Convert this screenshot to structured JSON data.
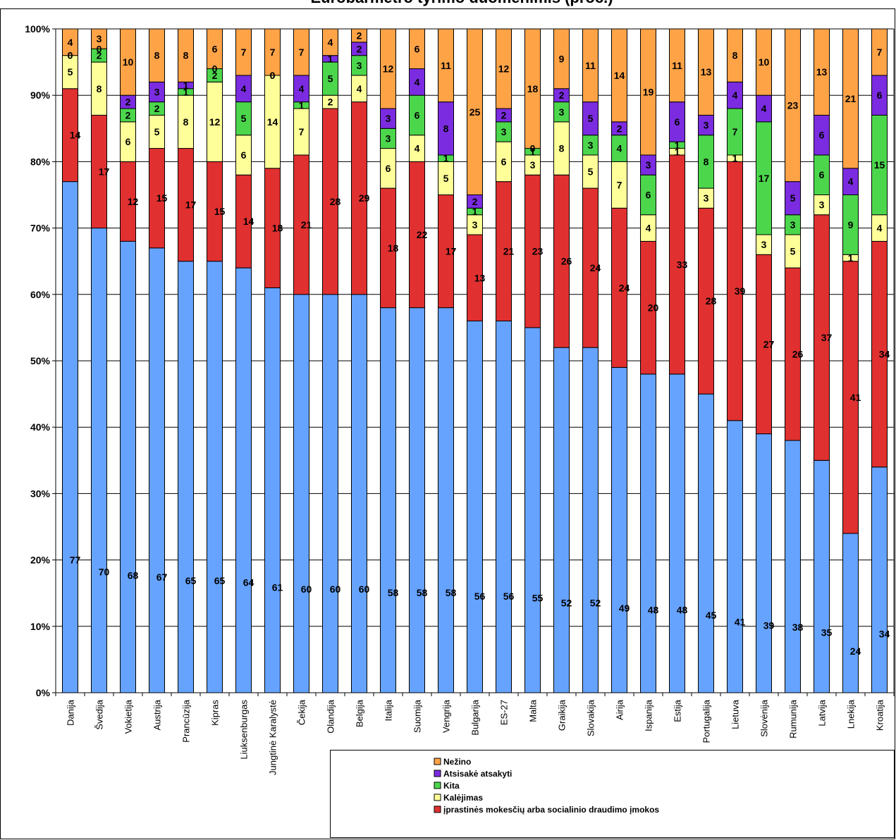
{
  "chart_data": {
    "type": "bar",
    "stacked": true,
    "title": "Eurobarmetro tyrimo duomenimis (proc.)",
    "yticks": [
      "0%",
      "10%",
      "20%",
      "30%",
      "40%",
      "50%",
      "60%",
      "70%",
      "80%",
      "90%",
      "100%"
    ],
    "ylim": [
      0,
      100
    ],
    "grid": true,
    "legend_position": "bottom-right",
    "categories": [
      "Danija",
      "Švedija",
      "Vokietija",
      "Austrija",
      "Prancūzija",
      "Kipras",
      "Liuksenburgas",
      "Jungtinė Karalystė",
      "Čekija",
      "Olandija",
      "Belgija",
      "Italija",
      "Suomija",
      "Vengrija",
      "Bulgarija",
      "ES-27",
      "Malta",
      "Graikija",
      "Slovakija",
      "Airija",
      "Ispanija",
      "Estija",
      "Portugalija",
      "Lietuva",
      "Slovėnija",
      "Rumunija",
      "Latvija",
      "Lnekija",
      "Kroatija"
    ],
    "series": [
      {
        "values": [
          77,
          70,
          68,
          67,
          65,
          65,
          64,
          61,
          60,
          60,
          60,
          58,
          58,
          58,
          56,
          56,
          55,
          52,
          52,
          49,
          48,
          48,
          45,
          41,
          39,
          38,
          35,
          24,
          34
        ],
        "color": "#66A3FF"
      },
      {
        "name": "įprastinės mokesčių arba socialinio draudimo įmokos",
        "values": [
          14,
          17,
          12,
          15,
          17,
          15,
          14,
          18,
          21,
          28,
          29,
          18,
          22,
          17,
          13,
          21,
          23,
          26,
          24,
          24,
          20,
          33,
          28,
          39,
          27,
          26,
          37,
          41,
          34
        ],
        "color": "#E03030"
      },
      {
        "name": "Kalėjimas",
        "values": [
          5,
          8,
          6,
          5,
          8,
          12,
          6,
          14,
          7,
          2,
          4,
          6,
          4,
          5,
          3,
          6,
          3,
          8,
          5,
          7,
          4,
          1,
          3,
          1,
          3,
          5,
          3,
          1,
          4
        ],
        "color": "#FFFF99"
      },
      {
        "name": "Kita",
        "values": [
          0,
          2,
          2,
          2,
          1,
          2,
          5,
          0,
          1,
          5,
          3,
          3,
          6,
          1,
          1,
          3,
          1,
          3,
          3,
          4,
          6,
          1,
          8,
          7,
          17,
          3,
          6,
          9,
          15
        ],
        "color": "#4CD64C"
      },
      {
        "name": "Atsisakė atsakyti",
        "values": [
          0,
          0,
          2,
          3,
          1,
          0,
          4,
          0,
          4,
          1,
          2,
          3,
          4,
          8,
          2,
          2,
          0,
          2,
          5,
          2,
          3,
          6,
          3,
          4,
          4,
          5,
          6,
          4,
          6
        ],
        "color": "#7B2CE0"
      },
      {
        "name": "Nežino",
        "values": [
          4,
          3,
          10,
          8,
          8,
          6,
          7,
          7,
          7,
          4,
          2,
          12,
          6,
          11,
          25,
          12,
          18,
          9,
          11,
          14,
          19,
          11,
          13,
          8,
          10,
          23,
          13,
          21,
          7
        ],
        "color": "#FFA347"
      }
    ]
  }
}
